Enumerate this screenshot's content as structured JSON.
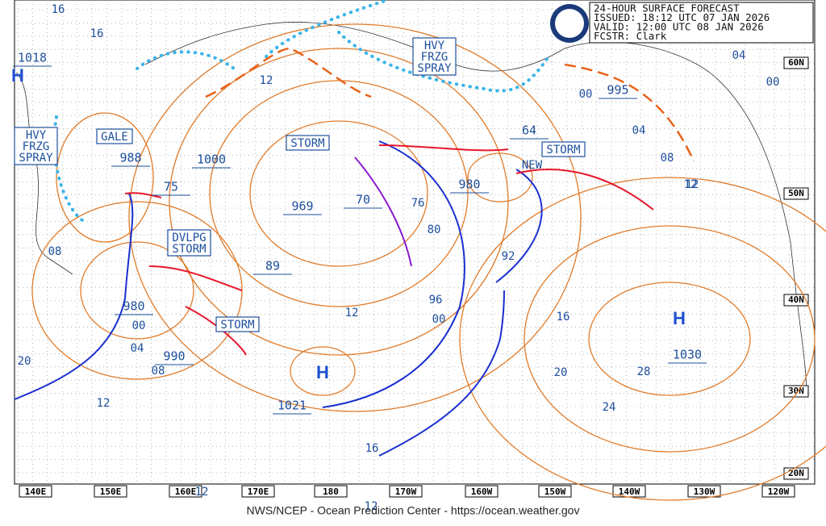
{
  "header": {
    "lines": [
      "24-HOUR SURFACE FORECAST",
      "ISSUED: 18:12 UTC 07 JAN 2026",
      "VALID:  12:00 UTC 08 JAN 2026",
      "FCSTR:  Clark"
    ]
  },
  "footer": "NWS/NCEP - Ocean Prediction Center - https://ocean.weather.gov",
  "lon_labels": [
    "140E",
    "150E",
    "160E",
    "170E",
    "180",
    "170W",
    "160W",
    "150W",
    "140W",
    "130W",
    "120W"
  ],
  "lat_labels": [
    "60N",
    "50N",
    "40N",
    "30N",
    "20N"
  ],
  "warnings": [
    [
      "STORM"
    ],
    [
      "STORM"
    ],
    [
      "STORM"
    ],
    [
      "GALE"
    ],
    [
      "HVY",
      "FRZG",
      "SPRAY"
    ],
    [
      "HVY",
      "FRZG",
      "SPRAY"
    ],
    [
      "DVLPG",
      "STORM"
    ],
    [
      "NEW"
    ]
  ],
  "highs": [
    "H",
    "H",
    "H"
  ],
  "centers": [
    "1018",
    "988",
    "1000",
    "75",
    "969",
    "70",
    "980",
    "64",
    "995",
    "89",
    "980",
    "990",
    "1021",
    "1030"
  ],
  "isobar_labels": [
    "16",
    "16",
    "12",
    "12",
    "04",
    "00",
    "08",
    "12",
    "24",
    "20",
    "28",
    "16",
    "12",
    "96",
    "00",
    "80",
    "92",
    "76",
    "08",
    "04",
    "00",
    "12",
    "08",
    "04",
    "00",
    "16",
    "12",
    "20",
    "12"
  ]
}
